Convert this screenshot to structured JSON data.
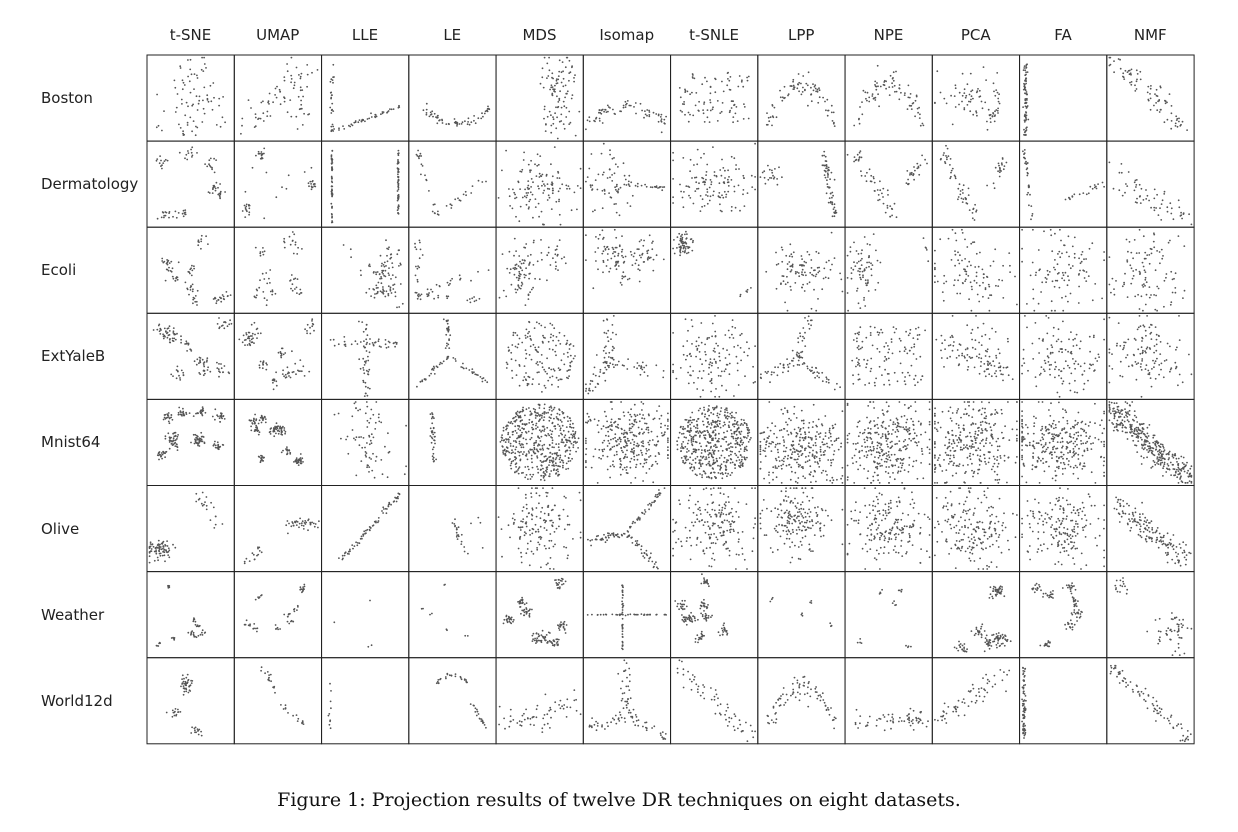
{
  "figure": {
    "columns": [
      "t-SNE",
      "UMAP",
      "LLE",
      "LE",
      "MDS",
      "Isomap",
      "t-SNLE",
      "LPP",
      "NPE",
      "PCA",
      "FA",
      "NMF"
    ],
    "rows": [
      "Boston",
      "Dermatology",
      "Ecoli",
      "ExtYaleB",
      "Mnist64",
      "Olive",
      "Weather",
      "World12d"
    ],
    "caption": "Figure 1: Projection results of twelve DR techniques on eight datasets."
  },
  "colors": {
    "points": "#555555",
    "border": "#222222",
    "background": "#ffffff"
  }
}
